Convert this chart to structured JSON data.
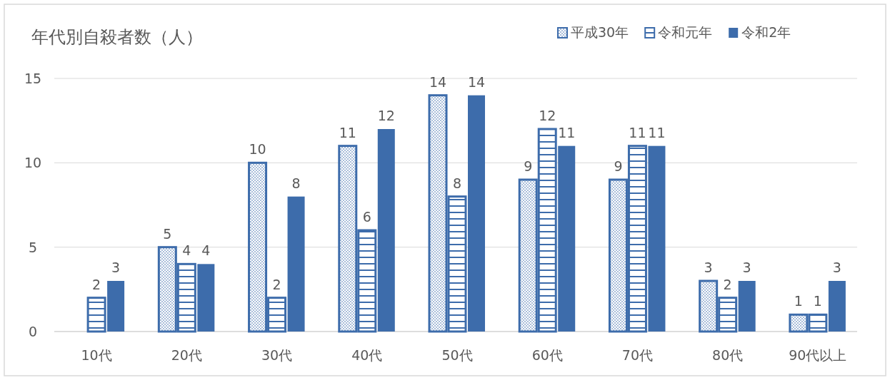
{
  "chart_data": {
    "type": "bar",
    "title": "年代別自殺者数（人）",
    "categories": [
      "10代",
      "20代",
      "30代",
      "40代",
      "50代",
      "60代",
      "70代",
      "80代",
      "90代以上"
    ],
    "series": [
      {
        "name": "平成30年",
        "color": "#3d6cab",
        "values": [
          null,
          5,
          10,
          11,
          14,
          9,
          9,
          3,
          1
        ]
      },
      {
        "name": "令和元年",
        "color": "#3d6cab",
        "values": [
          2,
          4,
          2,
          6,
          8,
          12,
          11,
          2,
          1
        ]
      },
      {
        "name": "令和2年",
        "color": "#3d6cab",
        "values": [
          3,
          4,
          8,
          12,
          14,
          11,
          11,
          3,
          3
        ]
      }
    ],
    "ylim": [
      0,
      15
    ],
    "yticks": [
      0,
      5,
      10,
      15
    ],
    "grid": "y",
    "legend": "top right",
    "data_labels": true
  }
}
